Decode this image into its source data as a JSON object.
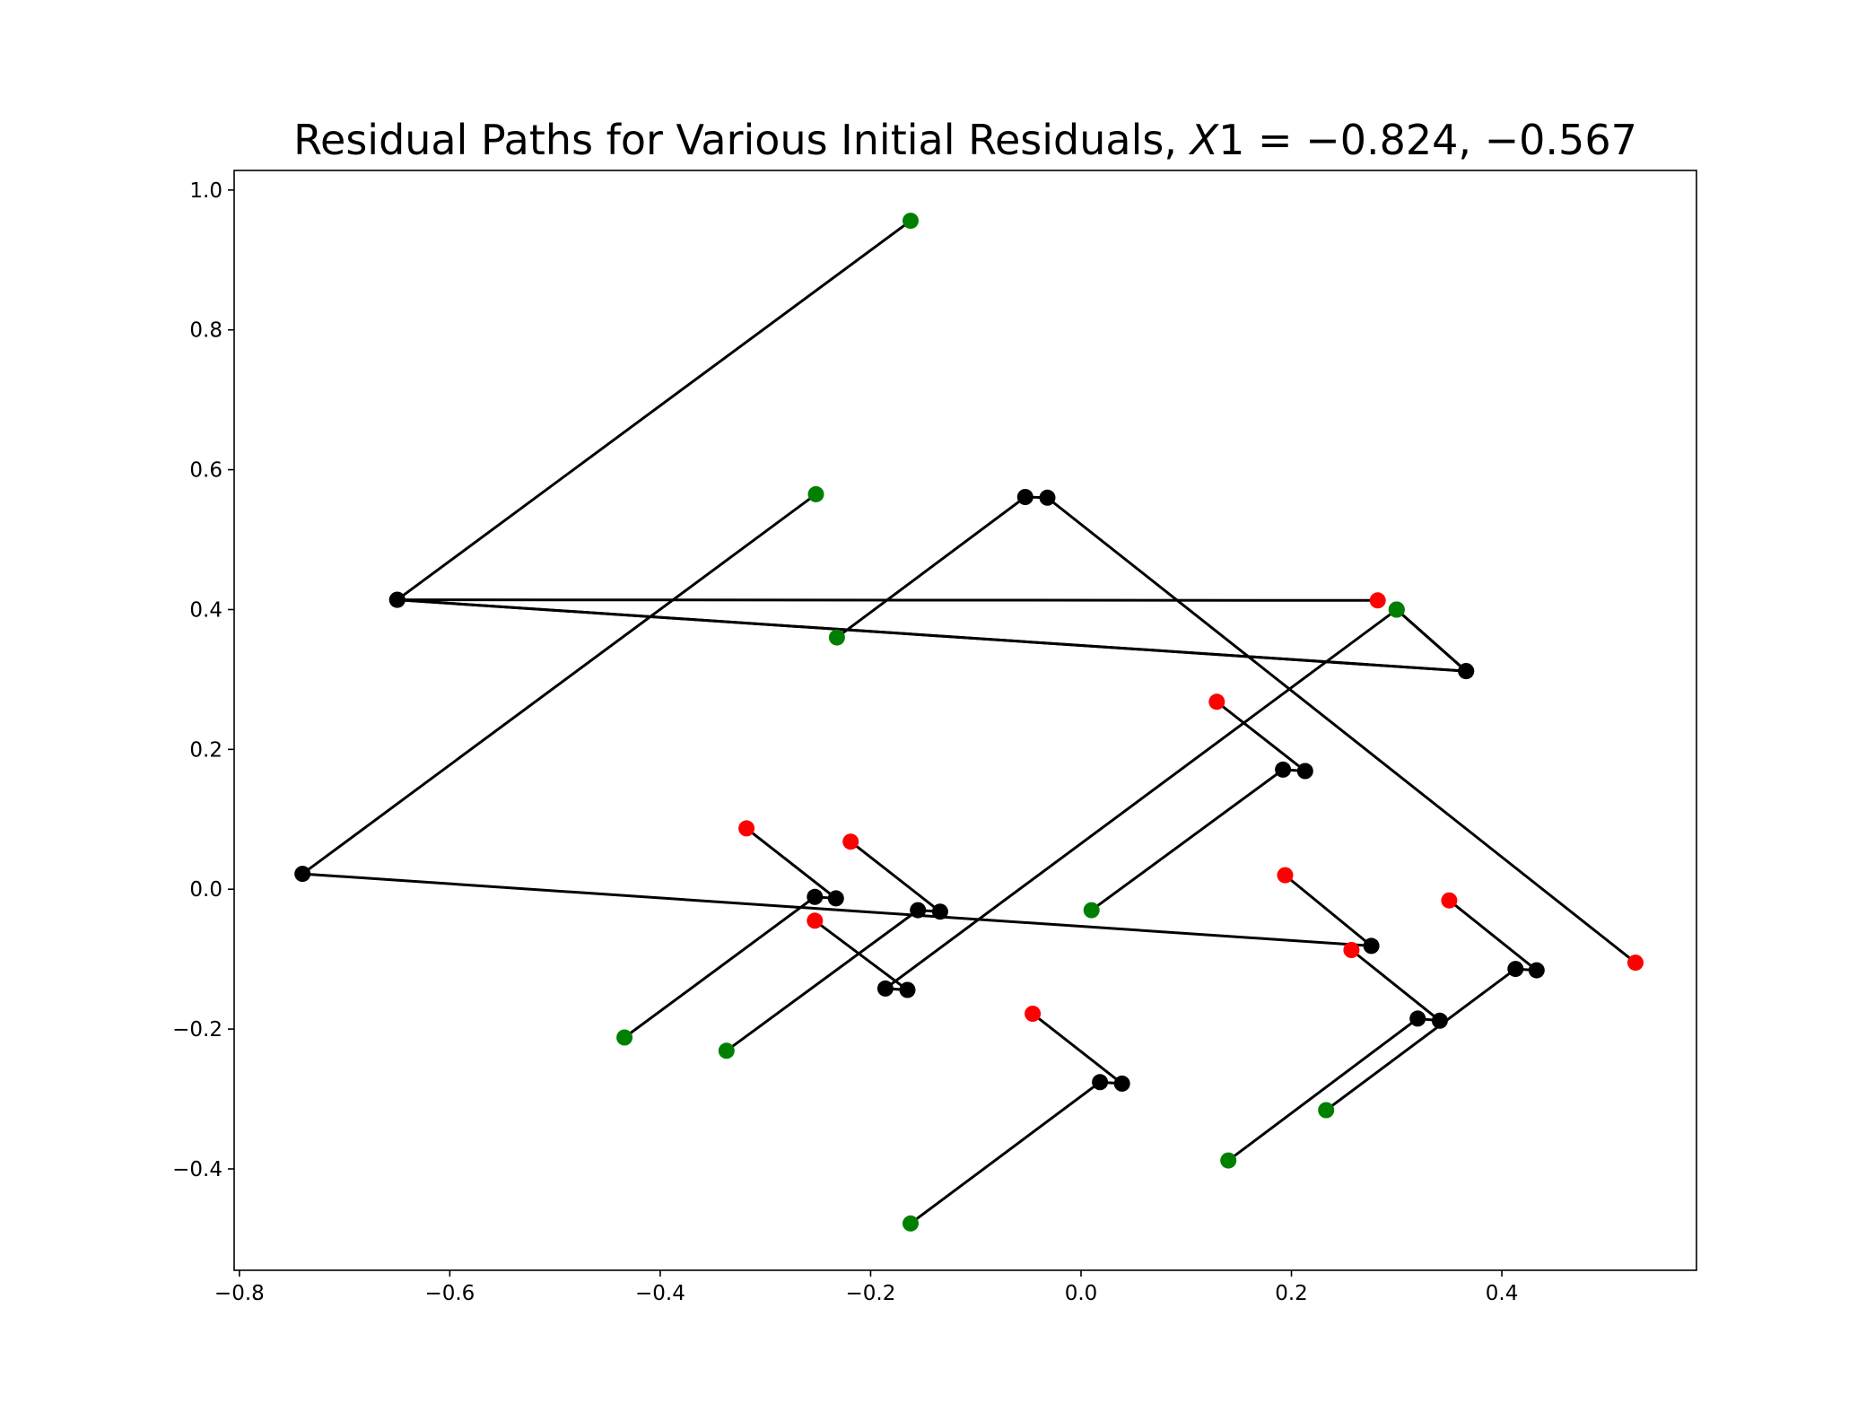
{
  "chart_data": {
    "type": "line",
    "title": "Residual Paths for Various Initial Residuals, X1 = −0.824, −0.567",
    "title_parts": {
      "text": "Residual Paths for Various Initial Residuals, ",
      "var": "X",
      "rest": "1 = −0.824, −0.567"
    },
    "xlabel": "",
    "ylabel": "",
    "xlim": [
      -0.805,
      0.585
    ],
    "ylim": [
      -0.545,
      1.028
    ],
    "grid": false,
    "xticks": [
      -0.8,
      -0.6,
      -0.4,
      -0.2,
      0.0,
      0.2,
      0.4
    ],
    "xtick_labels": [
      "−0.8",
      "−0.6",
      "−0.4",
      "−0.2",
      "0.0",
      "0.2",
      "0.4"
    ],
    "yticks": [
      -0.4,
      -0.2,
      0.0,
      0.2,
      0.4,
      0.6,
      0.8,
      1.0
    ],
    "ytick_labels": [
      "−0.4",
      "−0.2",
      "0.0",
      "0.2",
      "0.4",
      "0.6",
      "0.8",
      "1.0"
    ],
    "colors": {
      "start": "#008000",
      "end": "#ff0000",
      "intermediate": "#000000",
      "path": "#000000"
    },
    "paths": [
      {
        "points": [
          [
            -0.162,
            0.956
          ],
          [
            -0.65,
            0.414
          ],
          [
            0.366,
            0.312
          ],
          [
            0.3,
            0.4
          ],
          [
            -0.186,
            -0.142
          ],
          [
            -0.165,
            -0.144
          ],
          [
            -0.253,
            -0.045
          ]
        ]
      },
      {
        "points": [
          [
            -0.252,
            0.565
          ],
          [
            -0.74,
            0.022
          ],
          [
            0.276,
            -0.081
          ],
          [
            0.194,
            0.02
          ]
        ]
      },
      {
        "points": [
          [
            -0.232,
            0.36
          ],
          [
            -0.053,
            0.561
          ],
          [
            -0.032,
            0.56
          ],
          [
            0.527,
            -0.105
          ]
        ]
      },
      {
        "points": [
          [
            0.3,
            0.4
          ],
          [
            0.366,
            0.312
          ],
          [
            -0.65,
            0.414
          ],
          [
            0.282,
            0.413
          ]
        ]
      },
      {
        "points": [
          [
            0.01,
            -0.03
          ],
          [
            0.192,
            0.171
          ],
          [
            0.213,
            0.169
          ],
          [
            0.129,
            0.268
          ]
        ]
      },
      {
        "points": [
          [
            -0.434,
            -0.212
          ],
          [
            -0.253,
            -0.011
          ],
          [
            -0.233,
            -0.013
          ],
          [
            -0.318,
            0.087
          ]
        ]
      },
      {
        "points": [
          [
            -0.337,
            -0.231
          ],
          [
            -0.155,
            -0.03
          ],
          [
            -0.134,
            -0.032
          ],
          [
            -0.219,
            0.068
          ]
        ]
      },
      {
        "points": [
          [
            -0.162,
            -0.478
          ],
          [
            0.018,
            -0.276
          ],
          [
            0.039,
            -0.278
          ],
          [
            -0.046,
            -0.178
          ]
        ]
      },
      {
        "points": [
          [
            0.14,
            -0.388
          ],
          [
            0.32,
            -0.185
          ],
          [
            0.341,
            -0.188
          ],
          [
            0.257,
            -0.087
          ]
        ]
      },
      {
        "points": [
          [
            0.233,
            -0.316
          ],
          [
            0.413,
            -0.114
          ],
          [
            0.433,
            -0.116
          ],
          [
            0.35,
            -0.016
          ]
        ]
      }
    ]
  }
}
